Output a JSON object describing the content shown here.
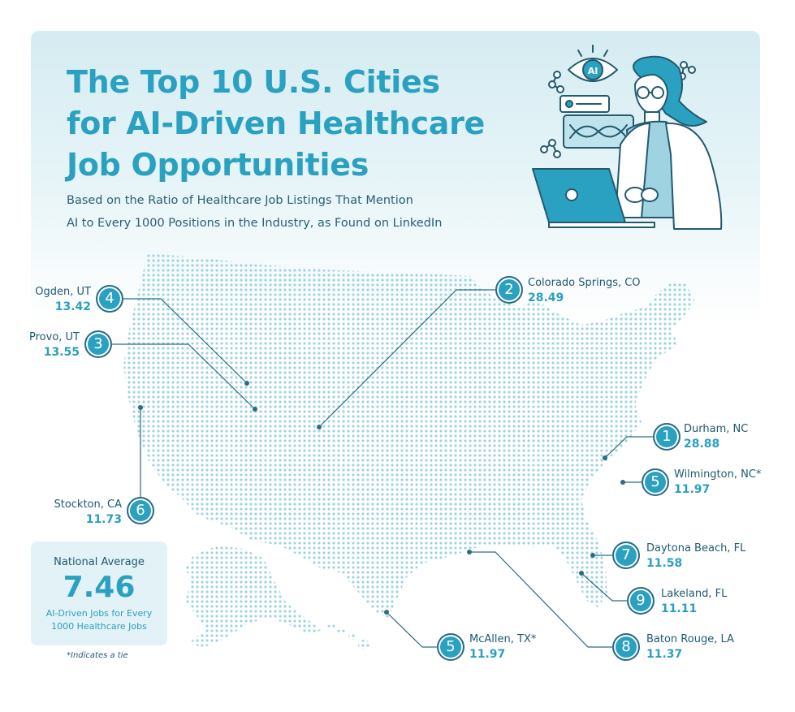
{
  "title_lines": [
    "The Top 10 U.S. Cities",
    "for AI-Driven Healthcare",
    "Job Opportunities"
  ],
  "subtitle_lines": [
    "Based on the Ratio of Healthcare Job Listings That Mention",
    "AI to Every 1000 Positions in the Industry, as Found on LinkedIn"
  ],
  "illustration": {
    "eye_badge_text": "AI"
  },
  "colors": {
    "accent": "#2ba1c1",
    "dark_text": "#1e5a70",
    "map_dots": "#9fd3e2",
    "card_bg": "#e2f2f6"
  },
  "cities": [
    {
      "rank": "4",
      "name": "Ogden, UT",
      "value": "13.42"
    },
    {
      "rank": "3",
      "name": "Provo, UT",
      "value": "13.55"
    },
    {
      "rank": "6",
      "name": "Stockton, CA",
      "value": "11.73"
    },
    {
      "rank": "2",
      "name": "Colorado Springs, CO",
      "value": "28.49"
    },
    {
      "rank": "1",
      "name": "Durham, NC",
      "value": "28.88"
    },
    {
      "rank": "5",
      "name": "Wilmington, NC*",
      "value": "11.97"
    },
    {
      "rank": "7",
      "name": "Daytona Beach, FL",
      "value": "11.58"
    },
    {
      "rank": "9",
      "name": "Lakeland, FL",
      "value": "11.11"
    },
    {
      "rank": "8",
      "name": "Baton Rouge, LA",
      "value": "11.37"
    },
    {
      "rank": "5",
      "name": "McAllen, TX*",
      "value": "11.97"
    }
  ],
  "national_average": {
    "label": "National Average",
    "value": "7.46",
    "description": "AI-Driven Jobs for Every 1000 Healthcare Jobs"
  },
  "footnote": "*Indicates a tie"
}
